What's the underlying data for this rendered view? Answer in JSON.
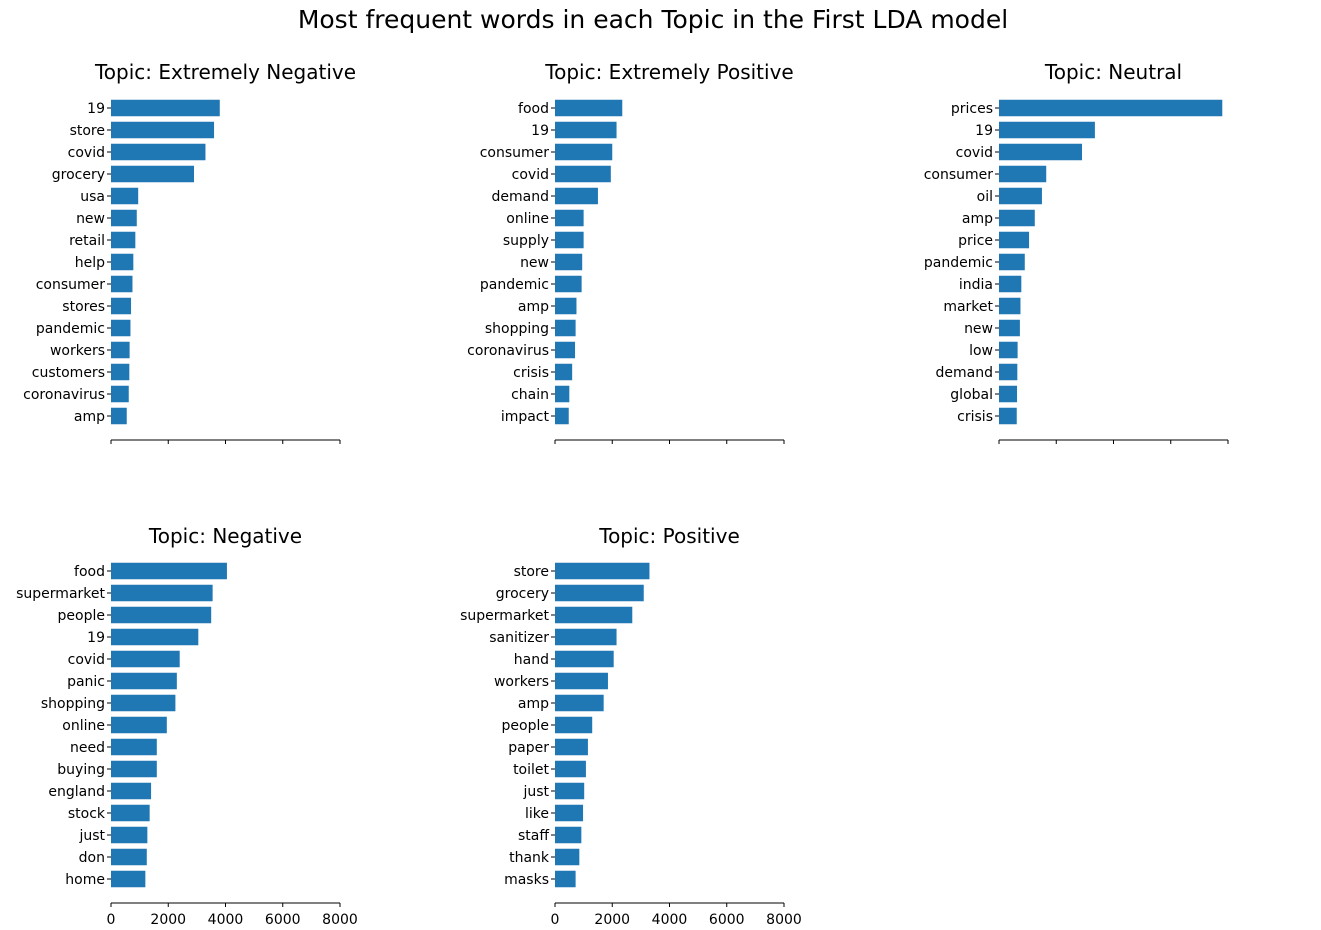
{
  "figure": {
    "title": "Most frequent words in each Topic in the First LDA model"
  },
  "colors": {
    "bar": "#1f77b4",
    "axis": "#000000"
  },
  "chart_data": [
    {
      "type": "bar",
      "orientation": "horizontal",
      "title": "Topic: Extremely Negative",
      "categories": [
        "19",
        "store",
        "covid",
        "grocery",
        "usa",
        "new",
        "retail",
        "help",
        "consumer",
        "stores",
        "pandemic",
        "workers",
        "customers",
        "coronavirus",
        "amp"
      ],
      "values": [
        3800,
        3600,
        3300,
        2900,
        950,
        900,
        850,
        780,
        750,
        700,
        680,
        650,
        640,
        620,
        550
      ],
      "xlim": [
        0,
        8000
      ],
      "xticks": [
        0,
        2000,
        4000,
        6000,
        8000
      ],
      "show_xtick_labels": false
    },
    {
      "type": "bar",
      "orientation": "horizontal",
      "title": "Topic: Extremely Positive",
      "categories": [
        "food",
        "19",
        "consumer",
        "covid",
        "demand",
        "online",
        "supply",
        "new",
        "pandemic",
        "amp",
        "shopping",
        "coronavirus",
        "crisis",
        "chain",
        "impact"
      ],
      "values": [
        2350,
        2150,
        2000,
        1950,
        1500,
        1000,
        1000,
        950,
        930,
        750,
        720,
        700,
        600,
        500,
        480
      ],
      "xlim": [
        0,
        8000
      ],
      "xticks": [
        0,
        2000,
        4000,
        6000,
        8000
      ],
      "show_xtick_labels": false
    },
    {
      "type": "bar",
      "orientation": "horizontal",
      "title": "Topic: Neutral",
      "categories": [
        "prices",
        "19",
        "covid",
        "consumer",
        "oil",
        "amp",
        "price",
        "pandemic",
        "india",
        "market",
        "new",
        "low",
        "demand",
        "global",
        "crisis"
      ],
      "values": [
        7800,
        3350,
        2900,
        1650,
        1500,
        1250,
        1050,
        900,
        780,
        750,
        730,
        650,
        640,
        630,
        620
      ],
      "xlim": [
        0,
        8000
      ],
      "xticks": [
        0,
        2000,
        4000,
        6000,
        8000
      ],
      "show_xtick_labels": false
    },
    {
      "type": "bar",
      "orientation": "horizontal",
      "title": "Topic: Negative",
      "categories": [
        "food",
        "supermarket",
        "people",
        "19",
        "covid",
        "panic",
        "shopping",
        "online",
        "need",
        "buying",
        "england",
        "stock",
        "just",
        "don",
        "home"
      ],
      "values": [
        4050,
        3550,
        3500,
        3050,
        2400,
        2300,
        2250,
        1950,
        1600,
        1600,
        1400,
        1350,
        1270,
        1250,
        1200
      ],
      "xlim": [
        0,
        8000
      ],
      "xticks": [
        0,
        2000,
        4000,
        6000,
        8000
      ],
      "show_xtick_labels": true
    },
    {
      "type": "bar",
      "orientation": "horizontal",
      "title": "Topic: Positive",
      "categories": [
        "store",
        "grocery",
        "supermarket",
        "sanitizer",
        "hand",
        "workers",
        "amp",
        "people",
        "paper",
        "toilet",
        "just",
        "like",
        "staff",
        "thank",
        "masks"
      ],
      "values": [
        3300,
        3100,
        2700,
        2150,
        2050,
        1850,
        1700,
        1300,
        1150,
        1080,
        1020,
        980,
        920,
        850,
        720
      ],
      "xlim": [
        0,
        8000
      ],
      "xticks": [
        0,
        2000,
        4000,
        6000,
        8000
      ],
      "show_xtick_labels": true
    }
  ]
}
